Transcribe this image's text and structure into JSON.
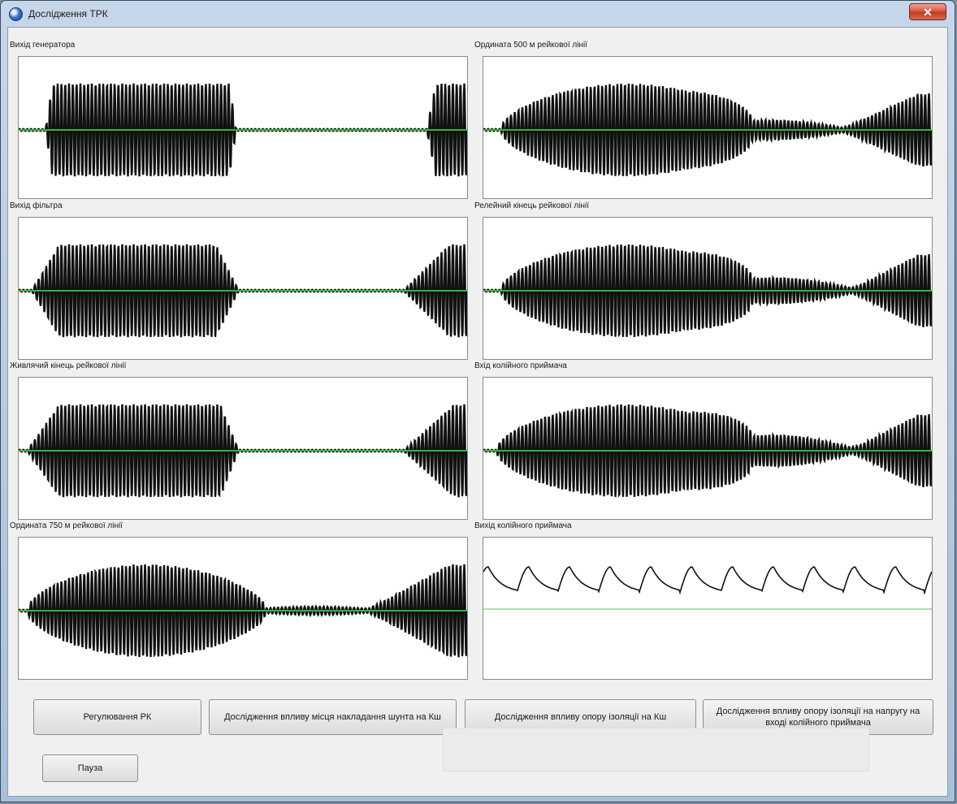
{
  "window": {
    "title": "Дослідження ТРК",
    "close_glyph": "✕"
  },
  "panels": [
    {
      "label": "Вихід генератора",
      "signal": "generator"
    },
    {
      "label": "Ордината 500 м рейкової лінії",
      "signal": "line500"
    },
    {
      "label": "Вихід фільтра",
      "signal": "filter"
    },
    {
      "label": "Релейний кінець рейкової лінії",
      "signal": "relay"
    },
    {
      "label": "Живлячий кінець рейкової лінії",
      "signal": "feed"
    },
    {
      "label": "Вхід  колійного приймача",
      "signal": "receiver_in"
    },
    {
      "label": "Ордината 750 м рейкової лінії",
      "signal": "line750"
    },
    {
      "label": "Вихід колійного приймача",
      "signal": "receiver_out"
    }
  ],
  "buttons": {
    "rk": "Регулювання РК",
    "shunt": "Дослідження впливу місця накладання шунта на Кш",
    "insulation_ksh": "Дослідження впливу опору ізоляції на Кш",
    "insulation_voltage": "Дослідження впливу опору ізоляції на напругу на вході колійного приймача",
    "pause": "Пауза"
  },
  "colors": {
    "waveform": "#111111",
    "axis_line": "#39c639"
  }
}
